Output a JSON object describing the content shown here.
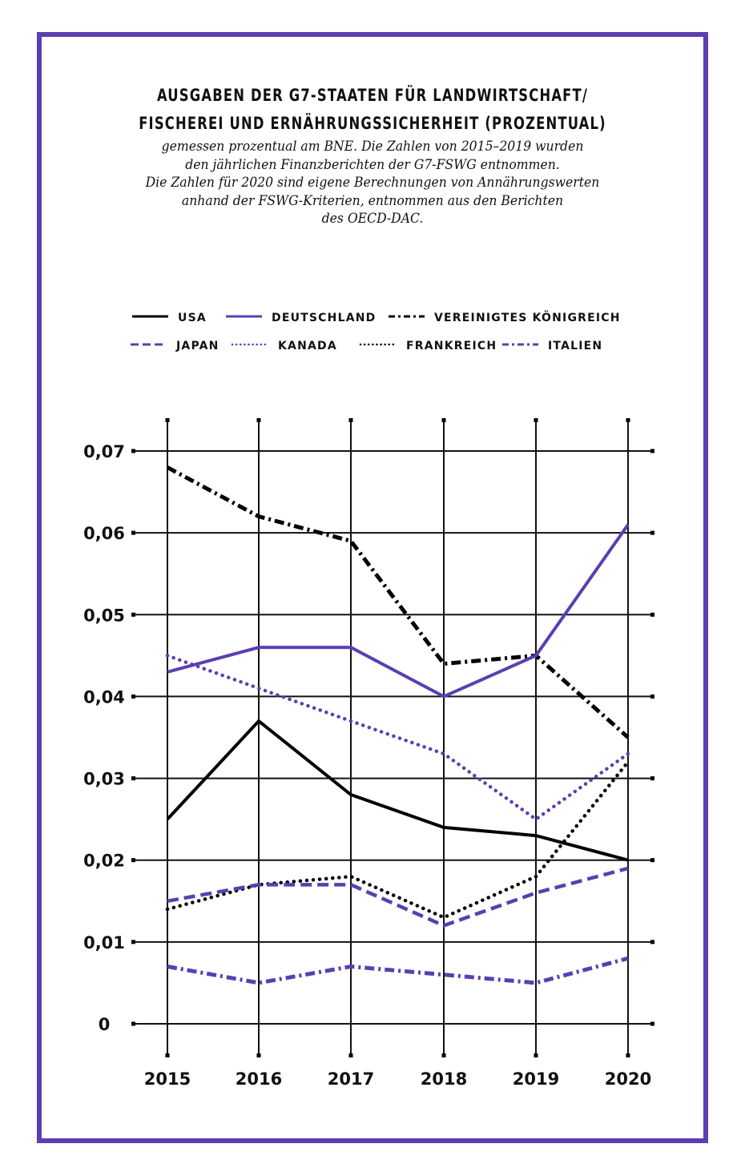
{
  "title": {
    "line1": "AUSGABEN DER G7-STAATEN FÜR LANDWIRTSCHAFT/",
    "line2": "FISCHEREI UND ERNÄHRUNGSSICHERHEIT (PROZENTUAL)"
  },
  "subtitle": {
    "lines": [
      "gemessen prozentual am BNE. Die Zahlen von 2015–2019 wurden",
      "den jährlichen Finanzberichten der G7-FSWG entnommen.",
      "Die Zahlen für 2020 sind eigene Berechnungen von Annährungswerten",
      "anhand der FSWG-Kriterien, entnommen aus den Berichten",
      "des OECD-DAC."
    ]
  },
  "colors": {
    "frame": "#5b3fb0",
    "purple": "#5b3fb0",
    "black": "#000000",
    "grid": "#111111"
  },
  "chart_data": {
    "type": "line",
    "title": "AUSGABEN DER G7-STAATEN FÜR LANDWIRTSCHAFT/FISCHEREI UND ERNÄHRUNGSSICHERHEIT (PROZENTUAL)",
    "subtitle": "gemessen prozentual am BNE. Die Zahlen von 2015–2019 wurden den jährlichen Finanzberichten der G7-FSWG entnommen. Die Zahlen für 2020 sind eigene Berechnungen von Annährungswerten anhand der FSWG-Kriterien, entnommen aus den Berichten des OECD-DAC.",
    "xlabel": "",
    "ylabel": "",
    "x": [
      "2015",
      "2016",
      "2017",
      "2018",
      "2019",
      "2020"
    ],
    "yticks": [
      "0",
      "0,01",
      "0,02",
      "0,03",
      "0,04",
      "0,05",
      "0,06",
      "0,07"
    ],
    "ylim": [
      0,
      0.07
    ],
    "grid": true,
    "legend_position": "top",
    "series": [
      {
        "name": "USA",
        "color": "#000000",
        "style": "solid",
        "values": [
          0.025,
          0.037,
          0.028,
          0.024,
          0.023,
          0.02
        ]
      },
      {
        "name": "DEUTSCHLAND",
        "color": "#5b3fb0",
        "style": "solid",
        "values": [
          0.043,
          0.046,
          0.046,
          0.04,
          0.045,
          0.061
        ]
      },
      {
        "name": "VEREINIGTES KÖNIGREICH",
        "color": "#000000",
        "style": "dashdot",
        "values": [
          0.068,
          0.062,
          0.059,
          0.044,
          0.045,
          0.035
        ]
      },
      {
        "name": "JAPAN",
        "color": "#5b3fb0",
        "style": "dashed",
        "values": [
          0.015,
          0.017,
          0.017,
          0.012,
          0.016,
          0.019
        ]
      },
      {
        "name": "KANADA",
        "color": "#5b3fb0",
        "style": "dotted",
        "values": [
          0.045,
          0.041,
          0.037,
          0.033,
          0.025,
          0.033
        ]
      },
      {
        "name": "FRANKREICH",
        "color": "#000000",
        "style": "dotted",
        "values": [
          0.014,
          0.017,
          0.018,
          0.013,
          0.018,
          0.032
        ]
      },
      {
        "name": "ITALIEN",
        "color": "#5b3fb0",
        "style": "dashdot",
        "values": [
          0.007,
          0.005,
          0.007,
          0.006,
          0.005,
          0.008
        ]
      }
    ]
  }
}
